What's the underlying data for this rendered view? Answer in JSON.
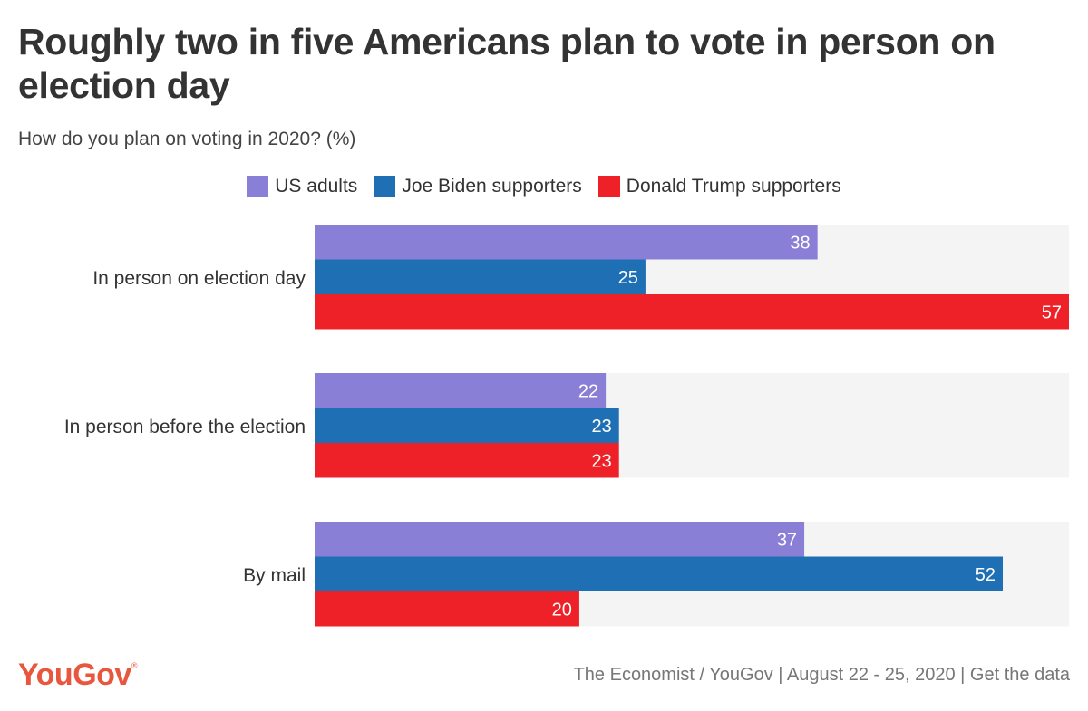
{
  "header": {
    "title": "Roughly two in five Americans plan to vote in person on election day",
    "subtitle": "How do you plan on voting in 2020? (%)"
  },
  "chart_data": {
    "type": "bar",
    "orientation": "horizontal",
    "title": "Roughly two in five Americans plan to vote in person on election day",
    "subtitle": "How do you plan on voting in 2020? (%)",
    "categories": [
      "In person on election day",
      "In person before the election",
      "By mail"
    ],
    "series": [
      {
        "name": "US adults",
        "color": "#8a7fd6",
        "values": [
          38,
          22,
          37
        ]
      },
      {
        "name": "Joe Biden supporters",
        "color": "#1f6fb5",
        "values": [
          25,
          23,
          52
        ]
      },
      {
        "name": "Donald Trump supporters",
        "color": "#ee2128",
        "values": [
          57,
          23,
          20
        ]
      }
    ],
    "xlim": [
      0,
      57
    ],
    "background_track_color": "#f4f4f4",
    "legend_position": "top-center",
    "grid": false,
    "data_labels": true
  },
  "footer": {
    "logo": "YouGov",
    "logo_mark": "®",
    "source": "The Economist / YouGov | August 22 - 25, 2020 | ",
    "link_label": "Get the data"
  }
}
